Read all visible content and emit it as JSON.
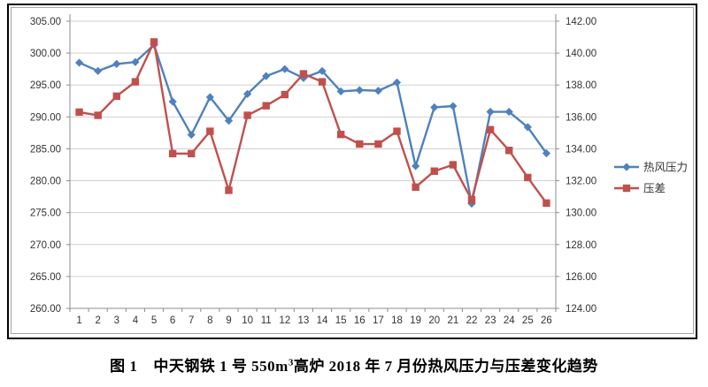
{
  "chart_data": {
    "type": "line",
    "categories": [
      1,
      2,
      3,
      4,
      5,
      6,
      7,
      8,
      9,
      10,
      11,
      12,
      13,
      14,
      15,
      16,
      17,
      18,
      19,
      20,
      21,
      22,
      23,
      24,
      25,
      26
    ],
    "series": [
      {
        "name": "热风压力",
        "axis": "left",
        "color": "#4F81BD",
        "marker": "diamond",
        "values": [
          298.5,
          297.2,
          298.3,
          298.6,
          301.3,
          292.4,
          287.2,
          293.1,
          289.4,
          293.6,
          296.4,
          297.5,
          296.1,
          297.2,
          294.0,
          294.2,
          294.1,
          295.4,
          282.3,
          291.5,
          291.7,
          276.4,
          290.8,
          290.8,
          288.4,
          284.3
        ]
      },
      {
        "name": "压差",
        "axis": "right",
        "color": "#C0504D",
        "marker": "square",
        "values": [
          136.3,
          136.1,
          137.3,
          138.2,
          140.7,
          133.7,
          133.7,
          135.1,
          131.4,
          136.1,
          136.7,
          137.4,
          138.7,
          138.2,
          134.9,
          134.3,
          134.3,
          135.1,
          131.6,
          132.6,
          133.0,
          130.8,
          135.2,
          133.9,
          132.2,
          130.6
        ]
      }
    ],
    "left_axis": {
      "min": 260,
      "max": 305,
      "step": 5,
      "decimals": 2,
      "tick_labels": [
        "260.00",
        "265.00",
        "270.00",
        "275.00",
        "280.00",
        "285.00",
        "290.00",
        "295.00",
        "300.00",
        "305.00"
      ]
    },
    "right_axis": {
      "min": 124,
      "max": 142,
      "step": 2,
      "decimals": 2,
      "tick_labels": [
        "124.00",
        "126.00",
        "128.00",
        "130.00",
        "132.00",
        "134.00",
        "136.00",
        "138.00",
        "140.00",
        "142.00"
      ]
    },
    "grid": true,
    "legend_position": "right",
    "title": "图 1　中天钢铁 1 号 550m3 高炉 2018 年 7 月份热风压力与压差变化趋势",
    "xlabel": "",
    "ylabel_left": "",
    "ylabel_right": ""
  },
  "caption": {
    "label": "图 1",
    "pre_sup": "中天钢铁 1 号 550m",
    "sup": "3",
    "post_sup": "高炉 2018 年 7 月份热风压力与压差变化趋势"
  },
  "colors": {
    "gridline": "#d1d1d1",
    "axis": "#8c8c8c",
    "tick_text": "#333333",
    "series_blue": "#4F81BD",
    "series_red": "#C0504D"
  }
}
